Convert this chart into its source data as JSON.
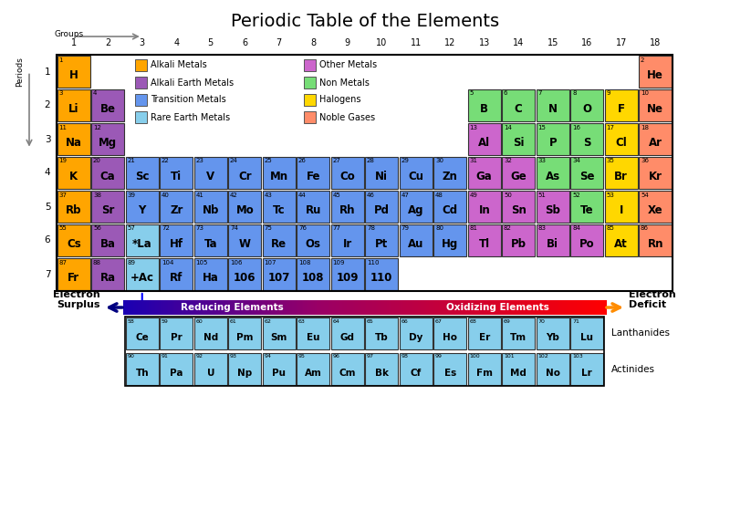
{
  "title": "Periodic Table of the Elements",
  "colors": {
    "alkali_metal": "#FFA500",
    "alkali_earth_metal": "#9B59B6",
    "transition_metal": "#6495ED",
    "rare_earth_metal": "#87CEEB",
    "other_metal": "#CC66CC",
    "non_metal": "#77DD77",
    "halogen": "#FFD700",
    "noble_gas": "#FF8C69",
    "hydrogen": "#FFA500"
  },
  "legend": [
    {
      "label": "Alkali Metals",
      "color": "#FFA500",
      "col": 0,
      "row": 0
    },
    {
      "label": "Alkali Earth Metals",
      "color": "#9B59B6",
      "col": 0,
      "row": 1
    },
    {
      "label": "Transition Metals",
      "color": "#6495ED",
      "col": 0,
      "row": 2
    },
    {
      "label": "Rare Earth Metals",
      "color": "#87CEEB",
      "col": 0,
      "row": 3
    },
    {
      "label": "Other Metals",
      "color": "#CC66CC",
      "col": 1,
      "row": 0
    },
    {
      "label": "Non Metals",
      "color": "#77DD77",
      "col": 1,
      "row": 1
    },
    {
      "label": "Halogens",
      "color": "#FFD700",
      "col": 1,
      "row": 2
    },
    {
      "label": "Noble Gases",
      "color": "#FF8C69",
      "col": 1,
      "row": 3
    }
  ],
  "elements": [
    {
      "symbol": "H",
      "num": "1",
      "group": 1,
      "period": 1,
      "type": "hydrogen"
    },
    {
      "symbol": "He",
      "num": "2",
      "group": 18,
      "period": 1,
      "type": "noble_gas"
    },
    {
      "symbol": "Li",
      "num": "3",
      "group": 1,
      "period": 2,
      "type": "alkali_metal"
    },
    {
      "symbol": "Be",
      "num": "4",
      "group": 2,
      "period": 2,
      "type": "alkali_earth_metal"
    },
    {
      "symbol": "B",
      "num": "5",
      "group": 13,
      "period": 2,
      "type": "non_metal"
    },
    {
      "symbol": "C",
      "num": "6",
      "group": 14,
      "period": 2,
      "type": "non_metal"
    },
    {
      "symbol": "N",
      "num": "7",
      "group": 15,
      "period": 2,
      "type": "non_metal"
    },
    {
      "symbol": "O",
      "num": "8",
      "group": 16,
      "period": 2,
      "type": "non_metal"
    },
    {
      "symbol": "F",
      "num": "9",
      "group": 17,
      "period": 2,
      "type": "halogen"
    },
    {
      "symbol": "Ne",
      "num": "10",
      "group": 18,
      "period": 2,
      "type": "noble_gas"
    },
    {
      "symbol": "Na",
      "num": "11",
      "group": 1,
      "period": 3,
      "type": "alkali_metal"
    },
    {
      "symbol": "Mg",
      "num": "12",
      "group": 2,
      "period": 3,
      "type": "alkali_earth_metal"
    },
    {
      "symbol": "Al",
      "num": "13",
      "group": 13,
      "period": 3,
      "type": "other_metal"
    },
    {
      "symbol": "Si",
      "num": "14",
      "group": 14,
      "period": 3,
      "type": "non_metal"
    },
    {
      "symbol": "P",
      "num": "15",
      "group": 15,
      "period": 3,
      "type": "non_metal"
    },
    {
      "symbol": "S",
      "num": "16",
      "group": 16,
      "period": 3,
      "type": "non_metal"
    },
    {
      "symbol": "Cl",
      "num": "17",
      "group": 17,
      "period": 3,
      "type": "halogen"
    },
    {
      "symbol": "Ar",
      "num": "18",
      "group": 18,
      "period": 3,
      "type": "noble_gas"
    },
    {
      "symbol": "K",
      "num": "19",
      "group": 1,
      "period": 4,
      "type": "alkali_metal"
    },
    {
      "symbol": "Ca",
      "num": "20",
      "group": 2,
      "period": 4,
      "type": "alkali_earth_metal"
    },
    {
      "symbol": "Sc",
      "num": "21",
      "group": 3,
      "period": 4,
      "type": "transition_metal"
    },
    {
      "symbol": "Ti",
      "num": "22",
      "group": 4,
      "period": 4,
      "type": "transition_metal"
    },
    {
      "symbol": "V",
      "num": "23",
      "group": 5,
      "period": 4,
      "type": "transition_metal"
    },
    {
      "symbol": "Cr",
      "num": "24",
      "group": 6,
      "period": 4,
      "type": "transition_metal"
    },
    {
      "symbol": "Mn",
      "num": "25",
      "group": 7,
      "period": 4,
      "type": "transition_metal"
    },
    {
      "symbol": "Fe",
      "num": "26",
      "group": 8,
      "period": 4,
      "type": "transition_metal"
    },
    {
      "symbol": "Co",
      "num": "27",
      "group": 9,
      "period": 4,
      "type": "transition_metal"
    },
    {
      "symbol": "Ni",
      "num": "28",
      "group": 10,
      "period": 4,
      "type": "transition_metal"
    },
    {
      "symbol": "Cu",
      "num": "29",
      "group": 11,
      "period": 4,
      "type": "transition_metal"
    },
    {
      "symbol": "Zn",
      "num": "30",
      "group": 12,
      "period": 4,
      "type": "transition_metal"
    },
    {
      "symbol": "Ga",
      "num": "31",
      "group": 13,
      "period": 4,
      "type": "other_metal"
    },
    {
      "symbol": "Ge",
      "num": "32",
      "group": 14,
      "period": 4,
      "type": "other_metal"
    },
    {
      "symbol": "As",
      "num": "33",
      "group": 15,
      "period": 4,
      "type": "non_metal"
    },
    {
      "symbol": "Se",
      "num": "34",
      "group": 16,
      "period": 4,
      "type": "non_metal"
    },
    {
      "symbol": "Br",
      "num": "35",
      "group": 17,
      "period": 4,
      "type": "halogen"
    },
    {
      "symbol": "Kr",
      "num": "36",
      "group": 18,
      "period": 4,
      "type": "noble_gas"
    },
    {
      "symbol": "Rb",
      "num": "37",
      "group": 1,
      "period": 5,
      "type": "alkali_metal"
    },
    {
      "symbol": "Sr",
      "num": "38",
      "group": 2,
      "period": 5,
      "type": "alkali_earth_metal"
    },
    {
      "symbol": "Y",
      "num": "39",
      "group": 3,
      "period": 5,
      "type": "transition_metal"
    },
    {
      "symbol": "Zr",
      "num": "40",
      "group": 4,
      "period": 5,
      "type": "transition_metal"
    },
    {
      "symbol": "Nb",
      "num": "41",
      "group": 5,
      "period": 5,
      "type": "transition_metal"
    },
    {
      "symbol": "Mo",
      "num": "42",
      "group": 6,
      "period": 5,
      "type": "transition_metal"
    },
    {
      "symbol": "Tc",
      "num": "43",
      "group": 7,
      "period": 5,
      "type": "transition_metal"
    },
    {
      "symbol": "Ru",
      "num": "44",
      "group": 8,
      "period": 5,
      "type": "transition_metal"
    },
    {
      "symbol": "Rh",
      "num": "45",
      "group": 9,
      "period": 5,
      "type": "transition_metal"
    },
    {
      "symbol": "Pd",
      "num": "46",
      "group": 10,
      "period": 5,
      "type": "transition_metal"
    },
    {
      "symbol": "Ag",
      "num": "47",
      "group": 11,
      "period": 5,
      "type": "transition_metal"
    },
    {
      "symbol": "Cd",
      "num": "48",
      "group": 12,
      "period": 5,
      "type": "transition_metal"
    },
    {
      "symbol": "In",
      "num": "49",
      "group": 13,
      "period": 5,
      "type": "other_metal"
    },
    {
      "symbol": "Sn",
      "num": "50",
      "group": 14,
      "period": 5,
      "type": "other_metal"
    },
    {
      "symbol": "Sb",
      "num": "51",
      "group": 15,
      "period": 5,
      "type": "other_metal"
    },
    {
      "symbol": "Te",
      "num": "52",
      "group": 16,
      "period": 5,
      "type": "non_metal"
    },
    {
      "symbol": "I",
      "num": "53",
      "group": 17,
      "period": 5,
      "type": "halogen"
    },
    {
      "symbol": "Xe",
      "num": "54",
      "group": 18,
      "period": 5,
      "type": "noble_gas"
    },
    {
      "symbol": "Cs",
      "num": "55",
      "group": 1,
      "period": 6,
      "type": "alkali_metal"
    },
    {
      "symbol": "Ba",
      "num": "56",
      "group": 2,
      "period": 6,
      "type": "alkali_earth_metal"
    },
    {
      "symbol": "*La",
      "num": "57",
      "group": 3,
      "period": 6,
      "type": "rare_earth_metal"
    },
    {
      "symbol": "Hf",
      "num": "72",
      "group": 4,
      "period": 6,
      "type": "transition_metal"
    },
    {
      "symbol": "Ta",
      "num": "73",
      "group": 5,
      "period": 6,
      "type": "transition_metal"
    },
    {
      "symbol": "W",
      "num": "74",
      "group": 6,
      "period": 6,
      "type": "transition_metal"
    },
    {
      "symbol": "Re",
      "num": "75",
      "group": 7,
      "period": 6,
      "type": "transition_metal"
    },
    {
      "symbol": "Os",
      "num": "76",
      "group": 8,
      "period": 6,
      "type": "transition_metal"
    },
    {
      "symbol": "Ir",
      "num": "77",
      "group": 9,
      "period": 6,
      "type": "transition_metal"
    },
    {
      "symbol": "Pt",
      "num": "78",
      "group": 10,
      "period": 6,
      "type": "transition_metal"
    },
    {
      "symbol": "Au",
      "num": "79",
      "group": 11,
      "period": 6,
      "type": "transition_metal"
    },
    {
      "symbol": "Hg",
      "num": "80",
      "group": 12,
      "period": 6,
      "type": "transition_metal"
    },
    {
      "symbol": "Tl",
      "num": "81",
      "group": 13,
      "period": 6,
      "type": "other_metal"
    },
    {
      "symbol": "Pb",
      "num": "82",
      "group": 14,
      "period": 6,
      "type": "other_metal"
    },
    {
      "symbol": "Bi",
      "num": "83",
      "group": 15,
      "period": 6,
      "type": "other_metal"
    },
    {
      "symbol": "Po",
      "num": "84",
      "group": 16,
      "period": 6,
      "type": "other_metal"
    },
    {
      "symbol": "At",
      "num": "85",
      "group": 17,
      "period": 6,
      "type": "halogen"
    },
    {
      "symbol": "Rn",
      "num": "86",
      "group": 18,
      "period": 6,
      "type": "noble_gas"
    },
    {
      "symbol": "Fr",
      "num": "87",
      "group": 1,
      "period": 7,
      "type": "alkali_metal"
    },
    {
      "symbol": "Ra",
      "num": "88",
      "group": 2,
      "period": 7,
      "type": "alkali_earth_metal"
    },
    {
      "symbol": "+Ac",
      "num": "89",
      "group": 3,
      "period": 7,
      "type": "rare_earth_metal"
    },
    {
      "symbol": "Rf",
      "num": "104",
      "group": 4,
      "period": 7,
      "type": "transition_metal"
    },
    {
      "symbol": "Ha",
      "num": "105",
      "group": 5,
      "period": 7,
      "type": "transition_metal"
    },
    {
      "symbol": "106",
      "num": "106",
      "group": 6,
      "period": 7,
      "type": "transition_metal"
    },
    {
      "symbol": "107",
      "num": "107",
      "group": 7,
      "period": 7,
      "type": "transition_metal"
    },
    {
      "symbol": "108",
      "num": "108",
      "group": 8,
      "period": 7,
      "type": "transition_metal"
    },
    {
      "symbol": "109",
      "num": "109",
      "group": 9,
      "period": 7,
      "type": "transition_metal"
    },
    {
      "symbol": "110",
      "num": "110",
      "group": 10,
      "period": 7,
      "type": "transition_metal"
    }
  ],
  "lanthanides": [
    {
      "symbol": "Ce",
      "num": "58"
    },
    {
      "symbol": "Pr",
      "num": "59"
    },
    {
      "symbol": "Nd",
      "num": "60"
    },
    {
      "symbol": "Pm",
      "num": "61"
    },
    {
      "symbol": "Sm",
      "num": "62"
    },
    {
      "symbol": "Eu",
      "num": "63"
    },
    {
      "symbol": "Gd",
      "num": "64"
    },
    {
      "symbol": "Tb",
      "num": "65"
    },
    {
      "symbol": "Dy",
      "num": "66"
    },
    {
      "symbol": "Ho",
      "num": "67"
    },
    {
      "symbol": "Er",
      "num": "68"
    },
    {
      "symbol": "Tm",
      "num": "69"
    },
    {
      "symbol": "Yb",
      "num": "70"
    },
    {
      "symbol": "Lu",
      "num": "71"
    }
  ],
  "actinides": [
    {
      "symbol": "Th",
      "num": "90"
    },
    {
      "symbol": "Pa",
      "num": "91"
    },
    {
      "symbol": "U",
      "num": "92"
    },
    {
      "symbol": "Np",
      "num": "93"
    },
    {
      "symbol": "Pu",
      "num": "94"
    },
    {
      "symbol": "Am",
      "num": "95"
    },
    {
      "symbol": "Cm",
      "num": "96"
    },
    {
      "symbol": "Bk",
      "num": "97"
    },
    {
      "symbol": "Cf",
      "num": "98"
    },
    {
      "symbol": "Es",
      "num": "99"
    },
    {
      "symbol": "Fm",
      "num": "100"
    },
    {
      "symbol": "Md",
      "num": "101"
    },
    {
      "symbol": "No",
      "num": "102"
    },
    {
      "symbol": "Lr",
      "num": "103"
    }
  ]
}
